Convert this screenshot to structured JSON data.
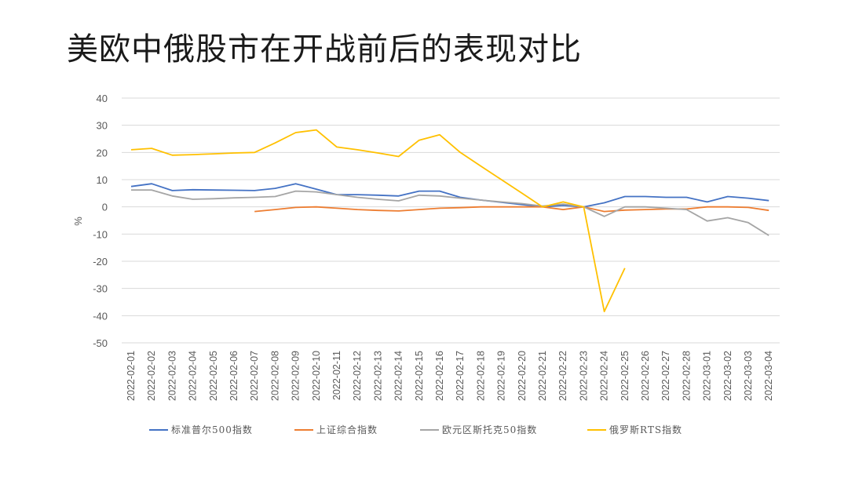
{
  "chart_data": {
    "type": "line",
    "title": "美欧中俄股市在开战前后的表现对比",
    "ylabel": "%",
    "xlabel": "",
    "ylim": [
      -50,
      40
    ],
    "yticks": [
      40,
      30,
      20,
      10,
      0,
      -10,
      -20,
      -30,
      -40,
      -50
    ],
    "grid": true,
    "legend_position": "bottom",
    "x": [
      "2022-02-01",
      "2022-02-02",
      "2022-02-03",
      "2022-02-04",
      "2022-02-05",
      "2022-02-06",
      "2022-02-07",
      "2022-02-08",
      "2022-02-09",
      "2022-02-10",
      "2022-02-11",
      "2022-02-12",
      "2022-02-13",
      "2022-02-14",
      "2022-02-15",
      "2022-02-16",
      "2022-02-17",
      "2022-02-18",
      "2022-02-19",
      "2022-02-20",
      "2022-02-21",
      "2022-02-22",
      "2022-02-23",
      "2022-02-24",
      "2022-02-25",
      "2022-02-26",
      "2022-02-27",
      "2022-02-28",
      "2022-03-01",
      "2022-03-02",
      "2022-03-03",
      "2022-03-04"
    ],
    "series": [
      {
        "name": "标准普尔500指数",
        "color": "#4472c4",
        "values": [
          7.5,
          8.5,
          6.0,
          6.3,
          6.2,
          6.1,
          6.0,
          6.8,
          8.5,
          6.5,
          4.5,
          4.5,
          4.3,
          4.0,
          5.8,
          5.8,
          3.5,
          2.5,
          null,
          null,
          0,
          0.5,
          0,
          1.5,
          3.8,
          3.8,
          3.5,
          3.5,
          1.8,
          3.8,
          3.2,
          2.3
        ]
      },
      {
        "name": "上证综合指数",
        "color": "#ed7d31",
        "values": [
          null,
          null,
          null,
          null,
          null,
          null,
          -1.7,
          -1.0,
          -0.2,
          0,
          -0.5,
          -1.0,
          -1.3,
          -1.5,
          -1.0,
          -0.5,
          -0.3,
          0,
          0,
          0,
          0,
          -1.0,
          0,
          -1.7,
          -1.2,
          -1.0,
          -0.8,
          -0.8,
          0,
          0,
          -0.2,
          -1.3
        ]
      },
      {
        "name": "欧元区斯托克50指数",
        "color": "#a5a5a5",
        "values": [
          6.2,
          6.2,
          4.0,
          2.8,
          3.0,
          3.3,
          3.5,
          3.8,
          5.8,
          5.5,
          4.5,
          3.5,
          2.8,
          2.2,
          4.3,
          4.0,
          3.2,
          2.5,
          1.8,
          1.2,
          0.3,
          1.0,
          0,
          -3.5,
          0,
          0,
          -0.5,
          -1.0,
          -5.2,
          -4.0,
          -5.8,
          -10.5
        ]
      },
      {
        "name": "俄罗斯RTS指数",
        "color": "#ffc000",
        "values": [
          21.0,
          21.5,
          19.0,
          19.2,
          19.5,
          19.8,
          20.0,
          23.5,
          27.3,
          28.3,
          22.0,
          21.0,
          19.8,
          18.5,
          24.5,
          26.5,
          20.0,
          15.0,
          10.0,
          5.0,
          0,
          1.8,
          0,
          -38.5,
          -22.5,
          null,
          null,
          null,
          null,
          null,
          null,
          null
        ]
      }
    ]
  }
}
